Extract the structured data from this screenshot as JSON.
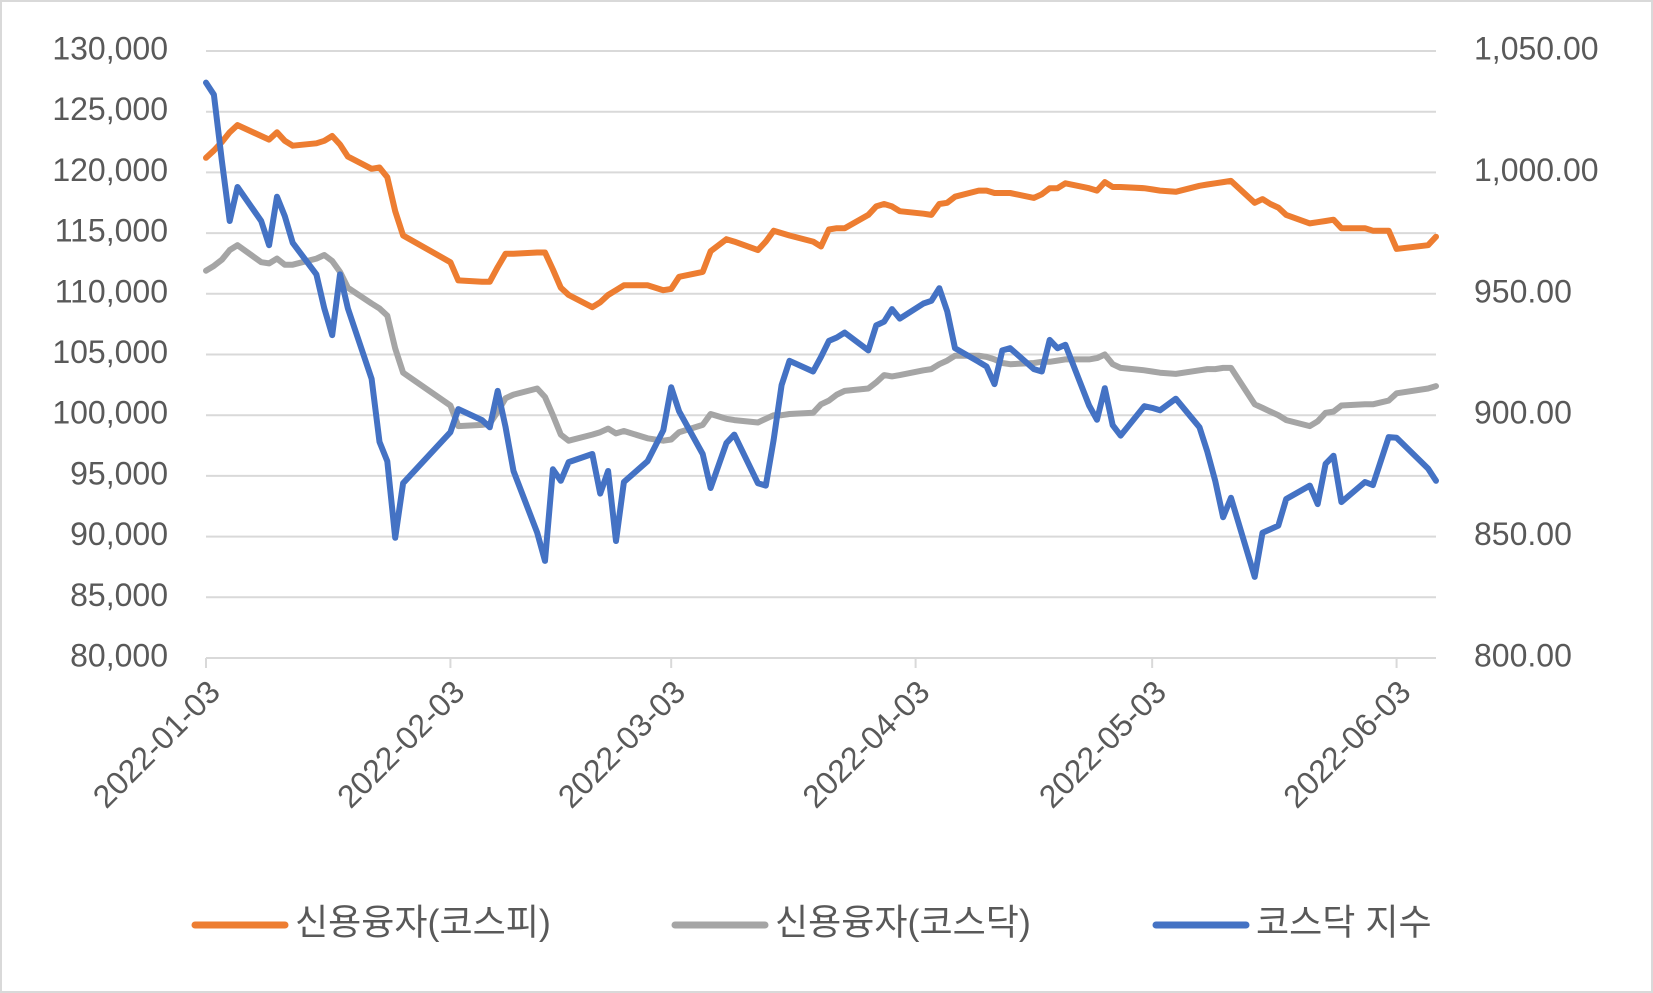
{
  "chart_data": {
    "type": "line",
    "x": [
      "2022-01-03",
      "2022-01-04",
      "2022-01-05",
      "2022-01-06",
      "2022-01-07",
      "2022-01-10",
      "2022-01-11",
      "2022-01-12",
      "2022-01-13",
      "2022-01-14",
      "2022-01-17",
      "2022-01-18",
      "2022-01-19",
      "2022-01-20",
      "2022-01-21",
      "2022-01-24",
      "2022-01-25",
      "2022-01-26",
      "2022-01-27",
      "2022-01-28",
      "2022-02-03",
      "2022-02-04",
      "2022-02-07",
      "2022-02-08",
      "2022-02-09",
      "2022-02-10",
      "2022-02-11",
      "2022-02-14",
      "2022-02-15",
      "2022-02-16",
      "2022-02-17",
      "2022-02-18",
      "2022-02-21",
      "2022-02-22",
      "2022-02-23",
      "2022-02-24",
      "2022-02-25",
      "2022-02-28",
      "2022-03-02",
      "2022-03-03",
      "2022-03-04",
      "2022-03-07",
      "2022-03-08",
      "2022-03-10",
      "2022-03-11",
      "2022-03-14",
      "2022-03-15",
      "2022-03-16",
      "2022-03-17",
      "2022-03-18",
      "2022-03-21",
      "2022-03-22",
      "2022-03-23",
      "2022-03-24",
      "2022-03-25",
      "2022-03-28",
      "2022-03-29",
      "2022-03-30",
      "2022-03-31",
      "2022-04-01",
      "2022-04-04",
      "2022-04-05",
      "2022-04-06",
      "2022-04-07",
      "2022-04-08",
      "2022-04-11",
      "2022-04-12",
      "2022-04-13",
      "2022-04-14",
      "2022-04-15",
      "2022-04-18",
      "2022-04-19",
      "2022-04-20",
      "2022-04-21",
      "2022-04-22",
      "2022-04-25",
      "2022-04-26",
      "2022-04-27",
      "2022-04-28",
      "2022-04-29",
      "2022-05-02",
      "2022-05-03",
      "2022-05-04",
      "2022-05-06",
      "2022-05-09",
      "2022-05-10",
      "2022-05-11",
      "2022-05-12",
      "2022-05-13",
      "2022-05-16",
      "2022-05-17",
      "2022-05-18",
      "2022-05-19",
      "2022-05-20",
      "2022-05-23",
      "2022-05-24",
      "2022-05-25",
      "2022-05-26",
      "2022-05-27",
      "2022-05-30",
      "2022-05-31",
      "2022-06-02",
      "2022-06-03",
      "2022-06-07",
      "2022-06-08"
    ],
    "series": [
      {
        "name": "신용융자(코스피)",
        "color": "#ed7d31",
        "values": [
          121200,
          121800,
          122500,
          123300,
          123900,
          123000,
          122700,
          123300,
          122600,
          122200,
          122400,
          122600,
          123000,
          122300,
          121300,
          120300,
          120400,
          119600,
          116800,
          114800,
          112600,
          111100,
          111000,
          111000,
          112200,
          113300,
          113300,
          113400,
          113400,
          112000,
          110500,
          109900,
          108900,
          109300,
          109900,
          110300,
          110700,
          110700,
          110300,
          110400,
          111400,
          111800,
          113500,
          114500,
          114300,
          113600,
          114300,
          115200,
          115000,
          114800,
          114300,
          113900,
          115300,
          115400,
          115400,
          116500,
          117200,
          117400,
          117200,
          116800,
          116600,
          116500,
          117400,
          117500,
          118000,
          118500,
          118500,
          118300,
          118300,
          118300,
          117900,
          118200,
          118700,
          118700,
          119100,
          118700,
          118500,
          119200,
          118800,
          118800,
          118700,
          118600,
          118500,
          118400,
          118900,
          119000,
          119100,
          119200,
          119300,
          117500,
          117800,
          117400,
          117100,
          116500,
          115800,
          115900,
          116000,
          116100,
          115400,
          115400,
          115200,
          115200,
          113700,
          114000,
          114700
        ]
      },
      {
        "name": "신용융자(코스닥)",
        "color": "#a5a5a5",
        "values": [
          111900,
          112300,
          112800,
          113600,
          114000,
          112600,
          112500,
          112900,
          112400,
          112400,
          112900,
          113200,
          112700,
          111800,
          110500,
          109200,
          108800,
          108200,
          105500,
          103500,
          100800,
          99100,
          99200,
          99300,
          100300,
          101400,
          101700,
          102200,
          101500,
          100000,
          98400,
          97900,
          98400,
          98600,
          98900,
          98500,
          98700,
          98100,
          97900,
          98000,
          98600,
          99200,
          100100,
          99700,
          99600,
          99400,
          99700,
          100000,
          100000,
          100100,
          100200,
          100900,
          101200,
          101700,
          102000,
          102200,
          102700,
          103300,
          103200,
          103300,
          103700,
          103800,
          104200,
          104500,
          104900,
          104900,
          104800,
          104600,
          104300,
          104200,
          104300,
          104400,
          104400,
          104500,
          104600,
          104600,
          104700,
          105000,
          104200,
          103900,
          103700,
          103600,
          103500,
          103400,
          103700,
          103800,
          103800,
          103900,
          103900,
          100900,
          100600,
          100300,
          100000,
          99600,
          99100,
          99500,
          100200,
          100300,
          100800,
          100900,
          100900,
          101200,
          101800,
          102200,
          102400
        ]
      },
      {
        "name": "코스닥 지수",
        "color": "#4472c4",
        "axis": "y2",
        "values": [
          1037,
          1032,
          1005,
          980,
          994,
          980,
          970,
          990,
          982,
          971,
          958,
          944,
          933,
          958,
          944,
          915,
          889,
          881,
          849.5,
          872,
          893,
          902.5,
          898,
          895,
          910,
          895,
          877,
          851.6,
          840,
          877.7,
          873,
          880.7,
          884,
          867.7,
          877,
          848.2,
          872.5,
          881,
          893.8,
          911.5,
          901.6,
          884,
          870,
          888.5,
          892,
          872,
          871,
          890,
          912.4,
          922.4,
          918,
          924,
          930.6,
          932,
          934,
          926.7,
          937,
          938.5,
          943.7,
          939.8,
          946,
          947.1,
          952.3,
          942.8,
          927.6,
          922,
          920,
          912.8,
          926.7,
          927.6,
          919,
          918,
          931,
          927.6,
          929,
          904,
          898.1,
          911.1,
          895.9,
          891.6,
          903.7,
          903,
          902,
          906.8,
          895,
          885,
          873,
          858,
          866,
          833.4,
          851.6,
          853,
          854.5,
          865.5,
          871,
          863.4,
          880,
          883.3,
          864.2,
          872.5,
          871.2,
          891,
          890.7,
          878,
          873
        ]
      }
    ],
    "xlim": [
      "2022-01-03",
      "2022-06-08"
    ],
    "xticks": [
      "2022-01-03",
      "2022-02-03",
      "2022-03-03",
      "2022-04-03",
      "2022-05-03",
      "2022-06-03"
    ],
    "ylim": [
      80000,
      130000
    ],
    "yticks": [
      {
        "value": 80000,
        "label": "80,000"
      },
      {
        "value": 85000,
        "label": "85,000"
      },
      {
        "value": 90000,
        "label": "90,000"
      },
      {
        "value": 95000,
        "label": "95,000"
      },
      {
        "value": 100000,
        "label": "100,000"
      },
      {
        "value": 105000,
        "label": "105,000"
      },
      {
        "value": 110000,
        "label": "110,000"
      },
      {
        "value": 115000,
        "label": "115,000"
      },
      {
        "value": 120000,
        "label": "120,000"
      },
      {
        "value": 125000,
        "label": "125,000"
      },
      {
        "value": 130000,
        "label": "130,000"
      }
    ],
    "y2lim": [
      800,
      1050
    ],
    "y2ticks": [
      {
        "value": 800,
        "label": "800.00"
      },
      {
        "value": 850,
        "label": "850.00"
      },
      {
        "value": 900,
        "label": "900.00"
      },
      {
        "value": 950,
        "label": "950.00"
      },
      {
        "value": 1000,
        "label": "1,000.00"
      },
      {
        "value": 1050,
        "label": "1,050.00"
      }
    ],
    "grid": true,
    "legend": "bottom"
  }
}
